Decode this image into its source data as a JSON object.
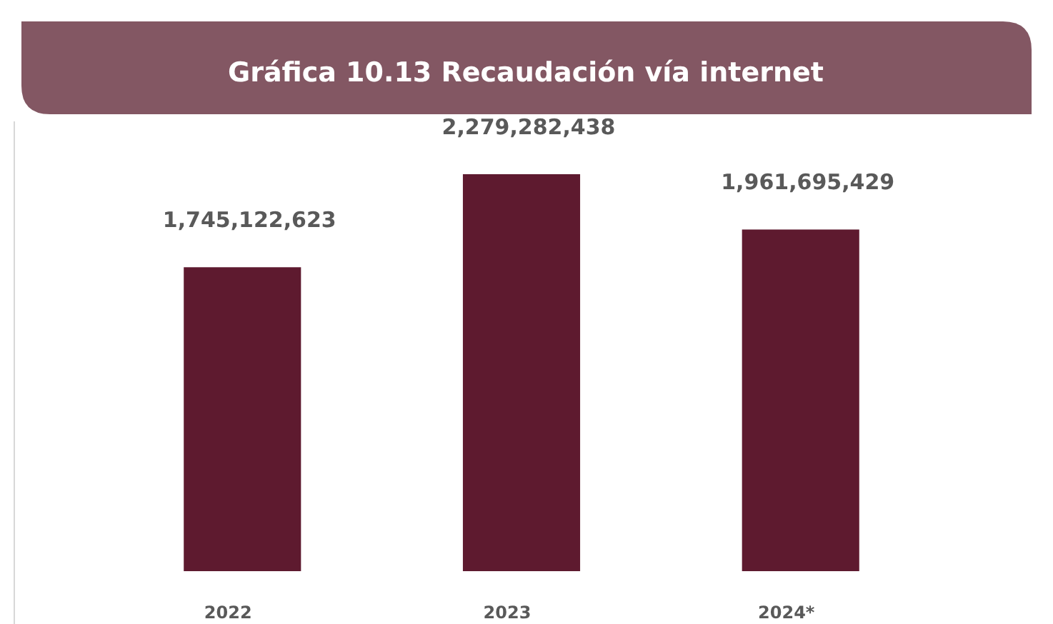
{
  "chart_data": {
    "type": "bar",
    "title": "Gráfica 10.13 Recaudación vía internet",
    "categories": [
      "2022",
      "2023",
      "2024*"
    ],
    "values": [
      1745122623,
      2279282438,
      1961695429
    ],
    "value_labels": [
      "1,745,122,623",
      "2,279,282,438",
      "1,961,695,429"
    ],
    "color": "#5e1a2f"
  }
}
